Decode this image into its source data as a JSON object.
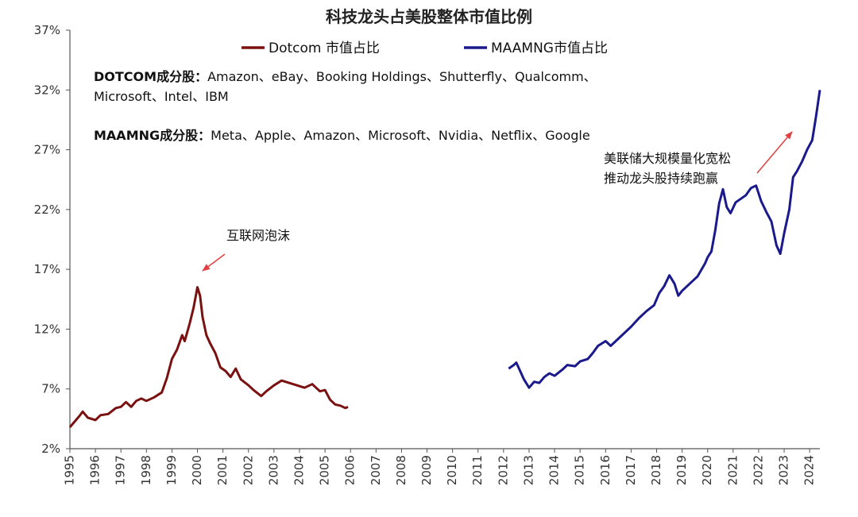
{
  "chart_data": {
    "type": "line",
    "title": "科技龙头占美股整体市值比例",
    "y_ticks": [
      "37%",
      "32%",
      "27%",
      "22%",
      "17%",
      "12%",
      "7%",
      "2%"
    ],
    "ylim": [
      2,
      37
    ],
    "x_ticks": [
      "1995",
      "1996",
      "1997",
      "1998",
      "1999",
      "2000",
      "2001",
      "2002",
      "2003",
      "2004",
      "2005",
      "2006",
      "2007",
      "2008",
      "2009",
      "2010",
      "2011",
      "2012",
      "2013",
      "2014",
      "2015",
      "2016",
      "2017",
      "2018",
      "2019",
      "2020",
      "2021",
      "2022",
      "2023",
      "2024"
    ],
    "xlim": [
      1995.0,
      2024.4
    ],
    "grid": false,
    "legend_position": "top-center",
    "series": [
      {
        "name": "Dotcom 市值占比",
        "color": "#7a1010",
        "points": [
          [
            1995.0,
            3.8
          ],
          [
            1995.2,
            4.3
          ],
          [
            1995.4,
            4.8
          ],
          [
            1995.5,
            5.1
          ],
          [
            1995.7,
            4.6
          ],
          [
            1996.0,
            4.4
          ],
          [
            1996.2,
            4.8
          ],
          [
            1996.5,
            4.9
          ],
          [
            1996.8,
            5.4
          ],
          [
            1997.0,
            5.5
          ],
          [
            1997.2,
            5.9
          ],
          [
            1997.4,
            5.5
          ],
          [
            1997.6,
            6.0
          ],
          [
            1997.8,
            6.2
          ],
          [
            1998.0,
            6.0
          ],
          [
            1998.3,
            6.3
          ],
          [
            1998.6,
            6.7
          ],
          [
            1998.8,
            7.9
          ],
          [
            1999.0,
            9.5
          ],
          [
            1999.2,
            10.3
          ],
          [
            1999.4,
            11.5
          ],
          [
            1999.5,
            11.0
          ],
          [
            1999.7,
            12.5
          ],
          [
            1999.85,
            13.8
          ],
          [
            2000.0,
            15.5
          ],
          [
            2000.1,
            14.8
          ],
          [
            2000.2,
            13.0
          ],
          [
            2000.35,
            11.5
          ],
          [
            2000.5,
            10.8
          ],
          [
            2000.7,
            10.0
          ],
          [
            2000.9,
            8.8
          ],
          [
            2001.1,
            8.5
          ],
          [
            2001.3,
            8.0
          ],
          [
            2001.5,
            8.7
          ],
          [
            2001.7,
            7.8
          ],
          [
            2002.0,
            7.3
          ],
          [
            2002.2,
            6.9
          ],
          [
            2002.5,
            6.4
          ],
          [
            2002.7,
            6.8
          ],
          [
            2003.0,
            7.3
          ],
          [
            2003.3,
            7.7
          ],
          [
            2003.6,
            7.5
          ],
          [
            2003.9,
            7.3
          ],
          [
            2004.2,
            7.1
          ],
          [
            2004.5,
            7.4
          ],
          [
            2004.8,
            6.8
          ],
          [
            2005.0,
            6.9
          ],
          [
            2005.2,
            6.1
          ],
          [
            2005.4,
            5.7
          ],
          [
            2005.6,
            5.6
          ],
          [
            2005.8,
            5.4
          ],
          [
            2005.9,
            5.5
          ]
        ]
      },
      {
        "name": "MAAMNG市值占比",
        "color": "#1a1a8c",
        "points": [
          [
            2012.2,
            8.7
          ],
          [
            2012.4,
            9.0
          ],
          [
            2012.5,
            9.2
          ],
          [
            2012.65,
            8.5
          ],
          [
            2012.8,
            7.8
          ],
          [
            2013.0,
            7.1
          ],
          [
            2013.2,
            7.6
          ],
          [
            2013.4,
            7.5
          ],
          [
            2013.6,
            8.0
          ],
          [
            2013.8,
            8.3
          ],
          [
            2014.0,
            8.1
          ],
          [
            2014.3,
            8.6
          ],
          [
            2014.5,
            9.0
          ],
          [
            2014.8,
            8.9
          ],
          [
            2015.0,
            9.3
          ],
          [
            2015.3,
            9.5
          ],
          [
            2015.5,
            10.0
          ],
          [
            2015.7,
            10.6
          ],
          [
            2016.0,
            11.0
          ],
          [
            2016.2,
            10.6
          ],
          [
            2016.5,
            11.2
          ],
          [
            2016.8,
            11.8
          ],
          [
            2017.0,
            12.2
          ],
          [
            2017.3,
            12.9
          ],
          [
            2017.6,
            13.5
          ],
          [
            2017.9,
            14.0
          ],
          [
            2018.1,
            15.0
          ],
          [
            2018.3,
            15.6
          ],
          [
            2018.5,
            16.5
          ],
          [
            2018.7,
            15.8
          ],
          [
            2018.85,
            14.8
          ],
          [
            2019.0,
            15.2
          ],
          [
            2019.3,
            15.8
          ],
          [
            2019.6,
            16.4
          ],
          [
            2019.9,
            17.5
          ],
          [
            2020.0,
            18.0
          ],
          [
            2020.15,
            18.5
          ],
          [
            2020.3,
            20.3
          ],
          [
            2020.45,
            22.5
          ],
          [
            2020.6,
            23.7
          ],
          [
            2020.75,
            22.2
          ],
          [
            2020.9,
            21.7
          ],
          [
            2021.1,
            22.6
          ],
          [
            2021.3,
            22.9
          ],
          [
            2021.5,
            23.2
          ],
          [
            2021.7,
            23.8
          ],
          [
            2021.9,
            24.0
          ],
          [
            2022.1,
            22.7
          ],
          [
            2022.3,
            21.8
          ],
          [
            2022.5,
            21.0
          ],
          [
            2022.7,
            19.0
          ],
          [
            2022.85,
            18.3
          ],
          [
            2023.0,
            20.0
          ],
          [
            2023.2,
            22.0
          ],
          [
            2023.35,
            24.7
          ],
          [
            2023.5,
            25.2
          ],
          [
            2023.7,
            26.0
          ],
          [
            2023.9,
            27.0
          ],
          [
            2024.1,
            27.8
          ],
          [
            2024.25,
            29.8
          ],
          [
            2024.4,
            32.0
          ]
        ]
      }
    ],
    "notes": [
      {
        "label": "DOTCOM成分股：",
        "text": "Amazon、eBay、Booking Holdings、Shutterfly、Qualcomm、"
      },
      {
        "label": "",
        "text": "Microsoft、Intel、IBM"
      },
      {
        "label": "MAAMNG成分股：",
        "text": "Meta、Apple、Amazon、Microsoft、Nvidia、Netflix、Google"
      }
    ],
    "annotations": [
      {
        "lines": [
          "互联网泡沫"
        ],
        "color": "#e04040"
      },
      {
        "lines": [
          "美联储大规模量化宽松",
          "推动龙头股持续跑赢"
        ],
        "color": "#e04040"
      }
    ]
  }
}
